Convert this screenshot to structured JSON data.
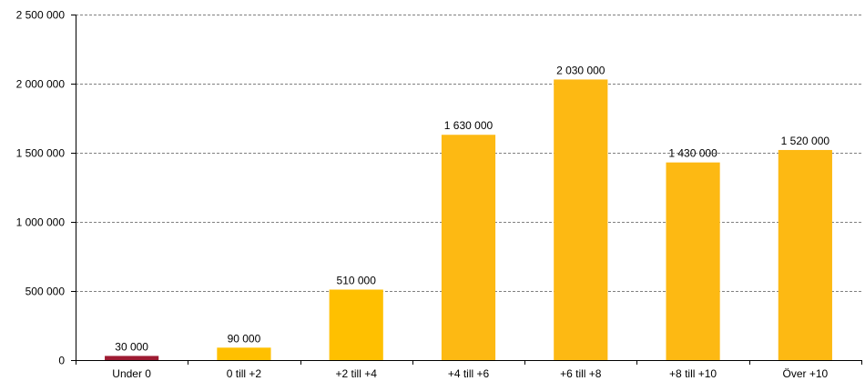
{
  "chart_data": {
    "type": "bar",
    "title": "",
    "xlabel": "",
    "ylabel": "",
    "categories": [
      "Under 0",
      "0 till +2",
      "+2 till +4",
      "+4 till +6",
      "+6 till +8",
      "+8 till +10",
      "Över +10"
    ],
    "values": [
      30000,
      90000,
      510000,
      1630000,
      2030000,
      1430000,
      1520000
    ],
    "value_labels": [
      "30 000",
      "90 000",
      "510 000",
      "1 630 000",
      "2 030 000",
      "1 430 000",
      "1 520 000"
    ],
    "yticks": [
      0,
      500000,
      1000000,
      1500000,
      2000000,
      2500000
    ],
    "ytick_labels": [
      "0",
      "500 000",
      "1 000 000",
      "1 500 000",
      "2 000 000",
      "2 500 000"
    ],
    "ylim": [
      0,
      2500000
    ],
    "grid": true,
    "legend": false,
    "colors": [
      "#9e1b32",
      "#ffc000",
      "#ffc000",
      "#fdb913",
      "#fdb913",
      "#fdb913",
      "#fdb913"
    ]
  }
}
